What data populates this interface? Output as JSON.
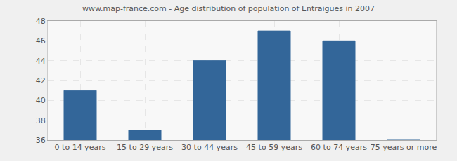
{
  "chart_data": {
    "type": "bar",
    "title": "www.map-france.com - Age distribution of population of Entraigues in 2007",
    "categories": [
      "0 to 14 years",
      "15 to 29 years",
      "30 to 44 years",
      "45 to 59 years",
      "60 to 74 years",
      "75 years or more"
    ],
    "values": [
      41,
      37,
      44,
      47,
      46,
      36
    ],
    "color": "#336699",
    "ylim": [
      36,
      48
    ],
    "yticks": [
      36,
      38,
      40,
      42,
      44,
      46,
      48
    ],
    "grid": true
  }
}
